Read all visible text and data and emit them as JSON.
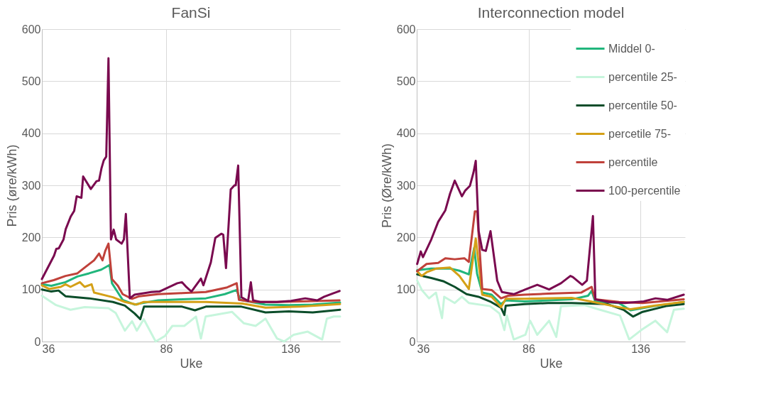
{
  "chart_data": [
    {
      "type": "line",
      "title": "FanSi",
      "xlabel": "Uke",
      "ylabel": "Pris (øre/kWh)",
      "xlim": [
        36,
        156
      ],
      "xticks": [
        36,
        86,
        136
      ],
      "ylim": [
        0,
        600
      ],
      "yticks": [
        0,
        100,
        200,
        300,
        400,
        500,
        600
      ],
      "grid": true,
      "legend": false,
      "series": [
        {
          "color": "#21b67c",
          "x": [
            36,
            39.8,
            45.5,
            50.3,
            55,
            59.9,
            63.2,
            64.2,
            66.6,
            68.5,
            73.3,
            75.2,
            82.8,
            92.4,
            102,
            109.6,
            114.4,
            115.8,
            125.9,
            135.4,
            145,
            156
          ],
          "values": [
            110,
            107,
            114,
            125,
            131,
            138,
            147,
            112,
            94,
            80,
            71,
            73,
            79,
            81,
            83,
            91,
            99,
            80,
            71,
            70,
            71,
            75
          ]
        },
        {
          "color": "#c6f5dc",
          "x": [
            36,
            41.7,
            47.5,
            53.2,
            62.8,
            65.7,
            69.4,
            72.3,
            74.2,
            77,
            81.8,
            85.6,
            88.5,
            93.3,
            98,
            100,
            101.9,
            112.5,
            117.3,
            122,
            126,
            130.6,
            133.5,
            137.3,
            143,
            148.8,
            150.7,
            153.5,
            156
          ],
          "values": [
            88,
            70,
            61,
            66,
            64,
            55,
            21,
            39,
            21,
            43,
            0,
            11,
            30,
            30,
            48,
            6,
            48,
            57,
            35,
            30,
            44,
            6,
            0,
            13,
            19,
            4,
            44,
            48,
            48
          ]
        },
        {
          "color": "#0b4d2a",
          "x": [
            36,
            39.8,
            42.7,
            45.5,
            55,
            64.6,
            69.4,
            73.3,
            75.6,
            77.1,
            83.7,
            92.4,
            97.6,
            102,
            116.3,
            126,
            135.4,
            145,
            156
          ],
          "values": [
            100,
            96,
            98,
            87,
            83,
            76,
            69,
            54,
            43,
            67,
            67,
            67,
            60,
            67,
            67,
            56,
            58,
            56,
            61
          ]
        },
        {
          "color": "#d4a017",
          "x": [
            36,
            38.9,
            43.6,
            45.5,
            47.5,
            51.3,
            53.2,
            56,
            57,
            64.6,
            69.4,
            74.2,
            77,
            92.4,
            102,
            116.7,
            126,
            140,
            156
          ],
          "values": [
            108,
            101,
            105,
            110,
            105,
            114,
            105,
            110,
            94,
            85,
            76,
            71,
            76,
            76,
            76,
            73,
            65,
            67,
            72
          ]
        },
        {
          "color": "#c0413a",
          "x": [
            36,
            40.8,
            45.5,
            50.3,
            53.2,
            57,
            59,
            60.4,
            61.5,
            62.8,
            64.2,
            66.6,
            68.5,
            72.3,
            75.2,
            82.8,
            92.4,
            102,
            110.6,
            114.4,
            115.3,
            121,
            130.6,
            140,
            155.8
          ],
          "values": [
            112,
            118,
            126,
            131,
            142,
            156,
            169,
            156,
            174,
            188,
            120,
            107,
            91,
            82,
            87,
            91,
            93,
            95,
            104,
            112,
            80,
            76,
            76,
            77,
            79
          ]
        },
        {
          "color": "#7a0a4f",
          "x": [
            36,
            40.9,
            41.8,
            42.8,
            44.7,
            45.6,
            47.6,
            49,
            50,
            51.9,
            52.6,
            55.7,
            58,
            59,
            60,
            60.9,
            61.9,
            62.8,
            63.8,
            64.9,
            65.9,
            68.1,
            69,
            69.8,
            71.4,
            73.3,
            80,
            83.3,
            90.5,
            92.4,
            94.3,
            96.2,
            100,
            101,
            104,
            105.8,
            108.2,
            109,
            110.1,
            112,
            113.5,
            114,
            115,
            116.3,
            119,
            120.1,
            121,
            123.9,
            130.6,
            136.3,
            142,
            146.8,
            149.6,
            153.4,
            155.8
          ],
          "values": [
            120,
            165,
            178,
            179,
            196,
            216,
            240,
            251,
            279,
            276,
            317,
            293,
            308,
            309,
            333,
            348,
            355,
            544,
            196,
            215,
            196,
            188,
            196,
            245,
            83,
            90,
            95,
            96,
            112,
            114,
            104,
            96,
            121,
            108,
            152,
            199,
            207,
            205,
            141,
            292,
            300,
            300,
            338,
            85,
            78,
            114,
            79,
            76,
            76,
            78,
            83,
            79,
            86,
            93,
            97
          ]
        }
      ]
    },
    {
      "type": "line",
      "title": "Interconnection model",
      "xlabel": "Uke",
      "ylabel": "Pris (Øre/kWh)",
      "xlim": [
        36,
        156
      ],
      "xticks": [
        36,
        86,
        136
      ],
      "ylim": [
        0,
        600
      ],
      "yticks": [
        0,
        100,
        200,
        300,
        400,
        500,
        600
      ],
      "grid": true,
      "legend": "top right",
      "series": [
        {
          "name": "Middel 0-",
          "color": "#21b67c",
          "x": [
            36.2,
            42.5,
            50.9,
            55.1,
            59.3,
            61.7,
            63,
            65.3,
            69.5,
            73.7,
            75.8,
            84.2,
            105.3,
            112.6,
            114.2,
            115.8,
            126.4,
            131.6,
            142.2,
            155.4
          ],
          "values": [
            137,
            140,
            140,
            136,
            129,
            180,
            130,
            94,
            90,
            72,
            79,
            77,
            81,
            88,
            97,
            77,
            74,
            60,
            68,
            76
          ]
        },
        {
          "name": "percentile 25-",
          "color": "#c6f5dc",
          "x": [
            36.2,
            38.3,
            41.5,
            44.6,
            47.3,
            48.3,
            53,
            56.2,
            59.3,
            68.8,
            73,
            75.2,
            76.3,
            79.4,
            84.6,
            86.7,
            89.9,
            95.2,
            98.4,
            100.5,
            111,
            116.3,
            126.9,
            131,
            136.4,
            142.7,
            148,
            151,
            155.4
          ],
          "values": [
            117,
            99,
            83,
            94,
            45,
            86,
            74,
            86,
            74,
            68,
            54,
            22,
            50,
            4,
            13,
            40,
            13,
            40,
            9,
            68,
            70,
            63,
            50,
            4,
            22,
            40,
            18,
            61,
            63
          ]
        },
        {
          "name": "percentile 50-",
          "color": "#0b4d2a",
          "x": [
            36.2,
            39.3,
            42.5,
            47.8,
            53,
            58.3,
            63.6,
            68.8,
            73.7,
            75.2,
            75.8,
            84.2,
            94.8,
            105.3,
            121.1,
            128.5,
            132.7,
            137,
            147.5,
            155.4
          ],
          "values": [
            129,
            125,
            122,
            116,
            105,
            91,
            86,
            77,
            65,
            51,
            69,
            72,
            74,
            74,
            72,
            61,
            48,
            57,
            68,
            72
          ]
        },
        {
          "name": "percetile 75-",
          "color": "#d4a017",
          "x": [
            36.2,
            38.2,
            40.4,
            44.6,
            50.9,
            55.1,
            59.3,
            62.4,
            65.3,
            69.5,
            73.7,
            75.8,
            84.2,
            105.3,
            113.7,
            126.4,
            131.6,
            142.2,
            155.4
          ],
          "values": [
            135,
            126,
            133,
            140,
            142,
            126,
            101,
            198,
            90,
            86,
            66,
            82,
            82,
            84,
            77,
            66,
            62,
            69,
            76
          ]
        },
        {
          "name": "percentile",
          "color": "#c0413a",
          "x": [
            36.2,
            40.4,
            45.6,
            48.8,
            53,
            57.3,
            59.3,
            62,
            63,
            65.3,
            69.5,
            73.7,
            76.9,
            84.2,
            94.8,
            109.5,
            114.2,
            115.8,
            126.4,
            137,
            155.4
          ],
          "values": [
            135,
            149,
            151,
            160,
            158,
            160,
            153,
            250,
            250,
            101,
            99,
            83,
            88,
            90,
            92,
            94,
            105,
            81,
            76,
            74,
            81
          ]
        },
        {
          "name": "100-percentile",
          "color": "#7a0a4f",
          "x": [
            36.2,
            37.8,
            38.8,
            42.5,
            45.6,
            48.8,
            50.9,
            53,
            56.2,
            57.7,
            59.8,
            61.4,
            62.4,
            63.7,
            65.3,
            66.9,
            69,
            72,
            74.1,
            79.4,
            84.6,
            89.9,
            95.2,
            100.5,
            104.7,
            105.8,
            110,
            112.1,
            114.8,
            115.9,
            121.7,
            129,
            137.5,
            142.8,
            148,
            155.4
          ],
          "values": [
            149,
            173,
            162,
            196,
            230,
            252,
            284,
            309,
            279,
            290,
            299,
            325,
            347,
            212,
            176,
            174,
            212,
            117,
            95,
            91,
            100,
            109,
            100,
            112,
            126,
            124,
            109,
            117,
            241,
            81,
            76,
            74,
            77,
            83,
            80,
            90
          ]
        }
      ]
    }
  ]
}
